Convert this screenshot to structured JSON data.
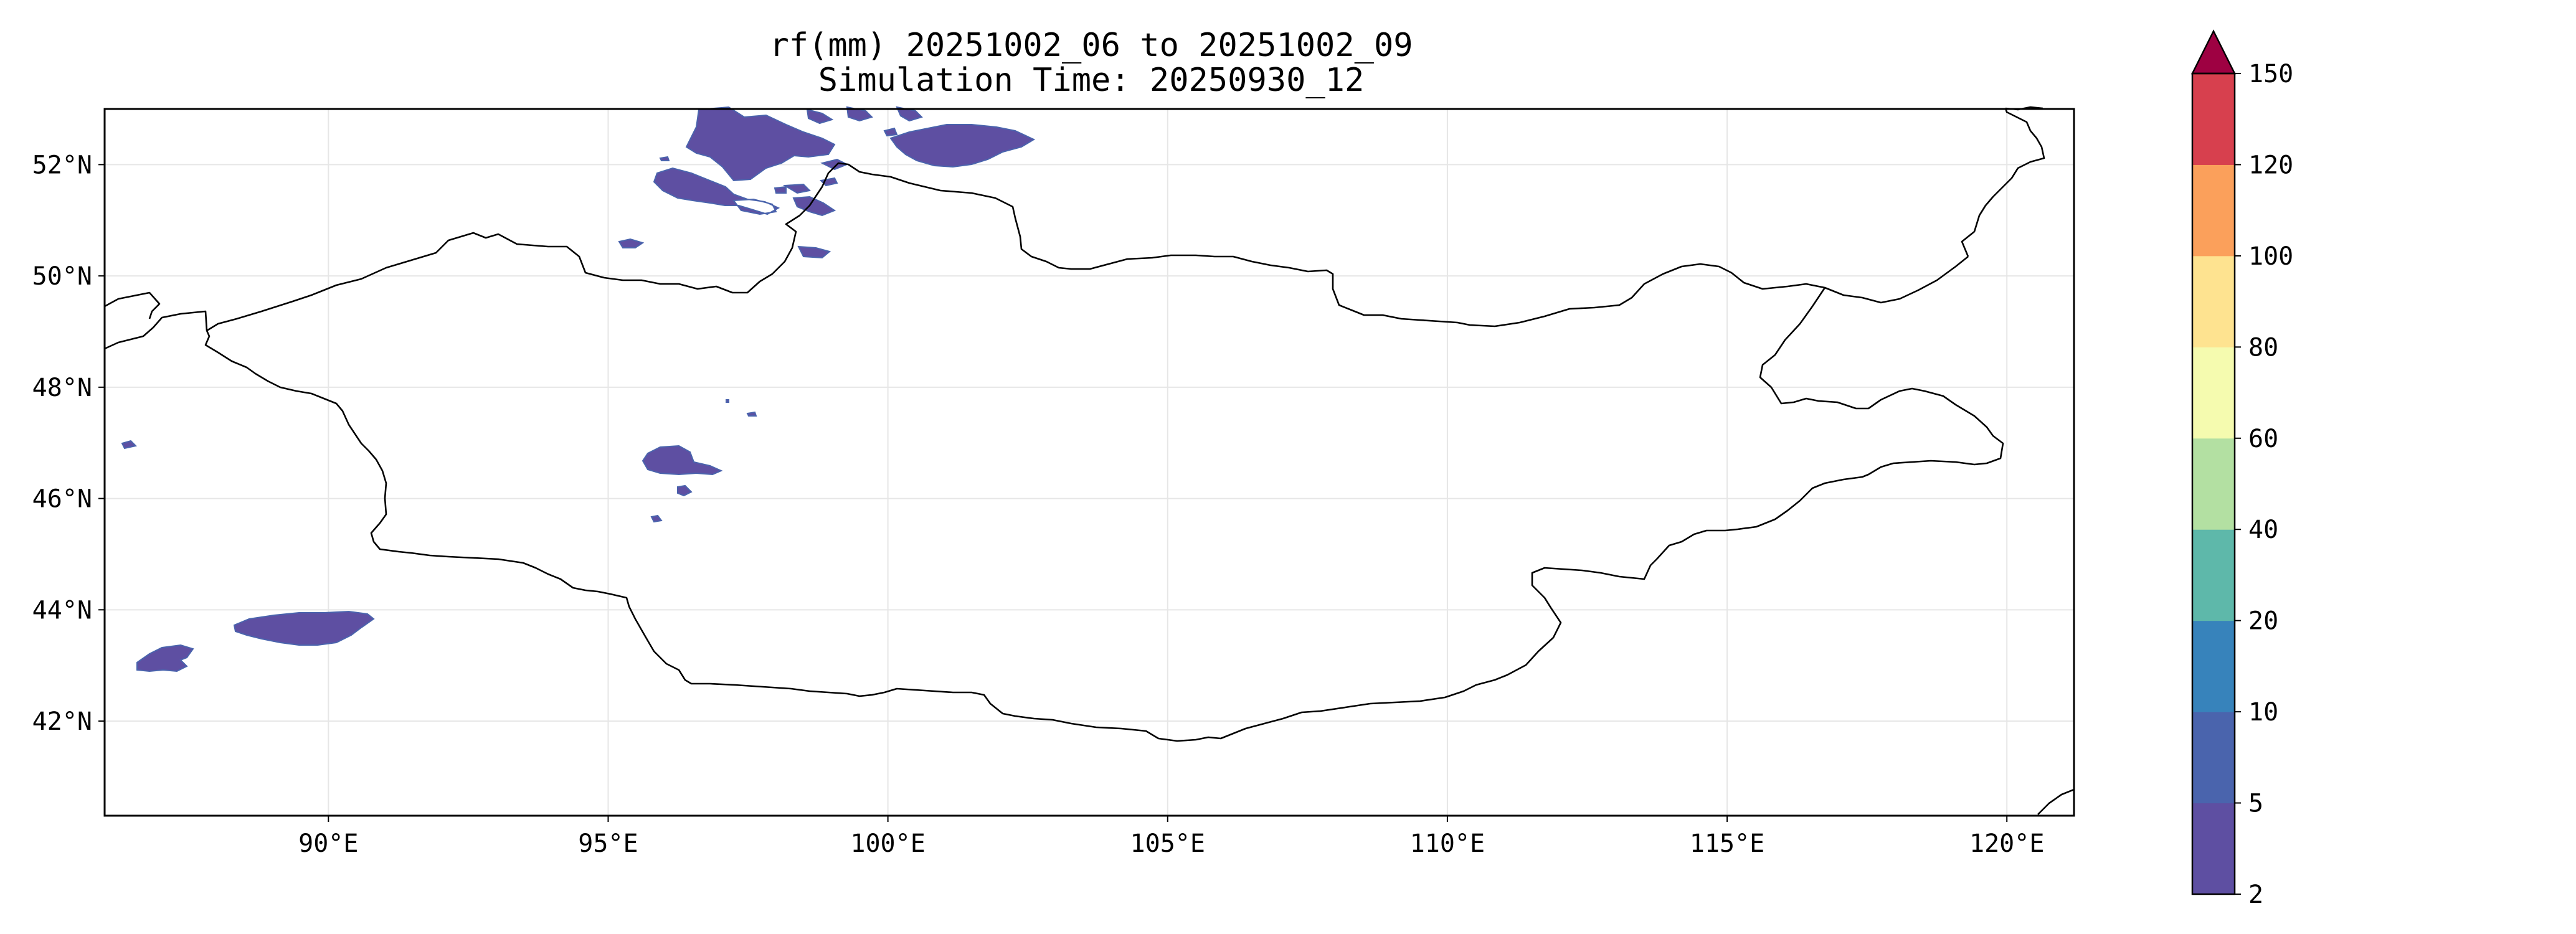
{
  "title_line1": "rf(mm) 20251002_06 to 20251002_09",
  "title_line2": "Simulation Time: 20250930_12",
  "map": {
    "lon_range": [
      86.0,
      121.2
    ],
    "lat_range": [
      40.3,
      53.0
    ],
    "lon_ticks": [
      {
        "value": 90,
        "label": "90°E"
      },
      {
        "value": 95,
        "label": "95°E"
      },
      {
        "value": 100,
        "label": "100°E"
      },
      {
        "value": 105,
        "label": "105°E"
      },
      {
        "value": 110,
        "label": "110°E"
      },
      {
        "value": 115,
        "label": "115°E"
      },
      {
        "value": 120,
        "label": "120°E"
      }
    ],
    "lat_ticks": [
      {
        "value": 42,
        "label": "42°N"
      },
      {
        "value": 44,
        "label": "44°N"
      },
      {
        "value": 46,
        "label": "46°N"
      },
      {
        "value": 48,
        "label": "48°N"
      },
      {
        "value": 50,
        "label": "50°N"
      },
      {
        "value": 52,
        "label": "52°N"
      }
    ],
    "gridlines": true,
    "precip_fill_color": "#5e4fa2",
    "precip_edge_color": "#4a64ad",
    "boundary_color": "#000000"
  },
  "colorbar": {
    "levels": [
      "2",
      "5",
      "10",
      "20",
      "40",
      "60",
      "80",
      "100",
      "120",
      "150"
    ],
    "colors": [
      "#5e4fa2",
      "#4a64ad",
      "#3783bb",
      "#5eb8aa",
      "#b3e0a2",
      "#f5fbaf",
      "#fee390",
      "#fba05b",
      "#d7404e"
    ],
    "extend_color": "#9e0142",
    "extend": "max"
  }
}
